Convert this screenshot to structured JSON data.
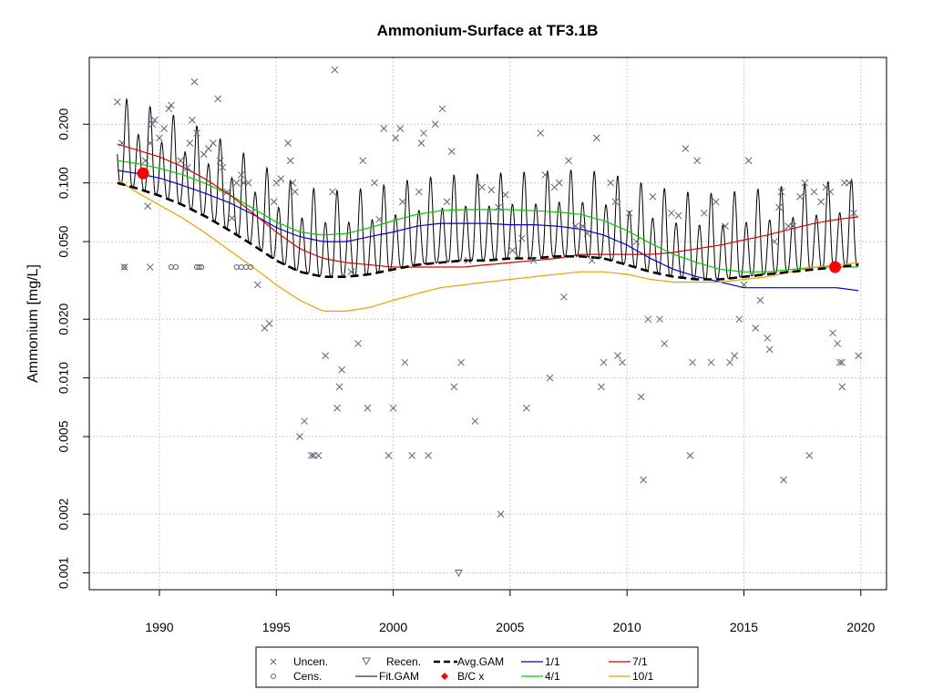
{
  "chart_data": {
    "type": "line",
    "title": "Ammonium-Surface at TF3.1B",
    "xlabel": "",
    "ylabel": "Ammonium [mg/L]",
    "xlim": [
      1987.0,
      2021.1
    ],
    "ylim": [
      0.00082,
      0.44
    ],
    "y_scale": "log",
    "grid": true,
    "x_ticks": [
      1990,
      1995,
      2000,
      2005,
      2010,
      2015,
      2020
    ],
    "y_ticks": [
      0.001,
      0.002,
      0.005,
      0.01,
      0.02,
      0.05,
      0.1,
      0.2
    ],
    "y_tick_labels": [
      "0.001",
      "0.002",
      "0.005",
      "0.010",
      "0.020",
      "0.050",
      "0.100",
      "0.200"
    ],
    "legend_position": "bottom",
    "colors": {
      "uncen": "#5a6577",
      "cens": "#5a6577",
      "fit": "#000000",
      "avg": "#000000",
      "bc": "#ff0000",
      "jan": "#0000cc",
      "apr": "#00cc00",
      "jul": "#dd0000",
      "oct": "#e8a000"
    },
    "legend": [
      {
        "label": "Uncen.",
        "kind": "uncen"
      },
      {
        "label": "Cens.",
        "kind": "cens"
      },
      {
        "label": "Recen.",
        "kind": "recen"
      },
      {
        "label": "Fit.GAM",
        "kind": "fit"
      },
      {
        "label": "Avg.GAM",
        "kind": "avg"
      },
      {
        "label": "B/C x",
        "kind": "bc"
      },
      {
        "label": "1/1",
        "kind": "jan"
      },
      {
        "label": "4/1",
        "kind": "apr"
      },
      {
        "label": "7/1",
        "kind": "jul"
      },
      {
        "label": "10/1",
        "kind": "oct"
      }
    ],
    "series": [
      {
        "name": "Avg.GAM",
        "x": [
          1988.2,
          1989,
          1990,
          1991,
          1992,
          1993,
          1994,
          1995,
          1996,
          1997,
          1998,
          1999,
          2000,
          2001,
          2002,
          2003,
          2004,
          2005,
          2006,
          2007,
          2008,
          2009,
          2010,
          2011,
          2012,
          2013,
          2014,
          2015,
          2016,
          2017,
          2018,
          2019,
          2019.9
        ],
        "y": [
          0.1,
          0.094,
          0.086,
          0.077,
          0.067,
          0.057,
          0.048,
          0.04,
          0.035,
          0.033,
          0.033,
          0.034,
          0.036,
          0.038,
          0.039,
          0.04,
          0.04,
          0.041,
          0.041,
          0.042,
          0.042,
          0.041,
          0.038,
          0.035,
          0.033,
          0.032,
          0.032,
          0.033,
          0.034,
          0.035,
          0.036,
          0.037,
          0.038
        ]
      },
      {
        "name": "1/1",
        "x": [
          1988.2,
          1989,
          1990,
          1991,
          1992,
          1993,
          1994,
          1995,
          1996,
          1997,
          1998,
          1999,
          2000,
          2001,
          2002,
          2003,
          2004,
          2005,
          2006,
          2007,
          2008,
          2009,
          2010,
          2011,
          2012,
          2013,
          2014,
          2015,
          2016,
          2017,
          2018,
          2019,
          2019.9
        ],
        "y": [
          0.116,
          0.112,
          0.106,
          0.097,
          0.088,
          0.079,
          0.069,
          0.059,
          0.053,
          0.05,
          0.05,
          0.053,
          0.056,
          0.06,
          0.062,
          0.062,
          0.062,
          0.061,
          0.061,
          0.06,
          0.058,
          0.054,
          0.048,
          0.041,
          0.036,
          0.033,
          0.031,
          0.029,
          0.029,
          0.029,
          0.029,
          0.029,
          0.028
        ]
      },
      {
        "name": "4/1",
        "x": [
          1988.2,
          1989,
          1990,
          1991,
          1992,
          1993,
          1994,
          1995,
          1996,
          1997,
          1998,
          1999,
          2000,
          2001,
          2002,
          2003,
          2004,
          2005,
          2006,
          2007,
          2008,
          2009,
          2010,
          2011,
          2012,
          2013,
          2014,
          2015,
          2016,
          2017,
          2018,
          2019,
          2019.9
        ],
        "y": [
          0.13,
          0.126,
          0.119,
          0.11,
          0.099,
          0.087,
          0.074,
          0.063,
          0.056,
          0.054,
          0.055,
          0.059,
          0.064,
          0.069,
          0.072,
          0.073,
          0.073,
          0.073,
          0.072,
          0.071,
          0.069,
          0.064,
          0.057,
          0.049,
          0.043,
          0.039,
          0.036,
          0.035,
          0.035,
          0.036,
          0.037,
          0.037,
          0.037
        ]
      },
      {
        "name": "7/1",
        "x": [
          1988.2,
          1989,
          1990,
          1991,
          1992,
          1993,
          1994,
          1995,
          1996,
          1997,
          1998,
          1999,
          2000,
          2001,
          2002,
          2003,
          2004,
          2005,
          2006,
          2007,
          2008,
          2009,
          2010,
          2011,
          2012,
          2013,
          2014,
          2015,
          2016,
          2017,
          2018,
          2019,
          2019.9
        ],
        "y": [
          0.158,
          0.148,
          0.136,
          0.121,
          0.104,
          0.087,
          0.07,
          0.056,
          0.046,
          0.041,
          0.039,
          0.038,
          0.037,
          0.037,
          0.037,
          0.037,
          0.038,
          0.039,
          0.04,
          0.041,
          0.043,
          0.043,
          0.043,
          0.043,
          0.044,
          0.046,
          0.048,
          0.051,
          0.054,
          0.058,
          0.062,
          0.065,
          0.067
        ]
      },
      {
        "name": "10/1",
        "x": [
          1988.2,
          1989,
          1990,
          1991,
          1992,
          1993,
          1994,
          1995,
          1996,
          1997,
          1998,
          1999,
          2000,
          2001,
          2002,
          2003,
          2004,
          2005,
          2006,
          2007,
          2008,
          2009,
          2010,
          2011,
          2012,
          2013,
          2014,
          2015,
          2016,
          2017,
          2018,
          2019,
          2019.9
        ],
        "y": [
          0.104,
          0.09,
          0.077,
          0.066,
          0.055,
          0.045,
          0.037,
          0.03,
          0.025,
          0.022,
          0.022,
          0.023,
          0.025,
          0.027,
          0.029,
          0.03,
          0.031,
          0.032,
          0.033,
          0.034,
          0.035,
          0.035,
          0.034,
          0.032,
          0.031,
          0.031,
          0.031,
          0.032,
          0.033,
          0.035,
          0.037,
          0.038,
          0.039
        ]
      }
    ],
    "fit_gam_seasonal": {
      "start_year": 1988.2,
      "end_year": 2019.9,
      "peak_month_fraction": 0.1,
      "trough_month_fraction": 0.72,
      "peak_multiplier": 1.9,
      "trough_multiplier": 0.36
    },
    "bc_points": [
      {
        "x": 1989.3,
        "y": 0.112
      },
      {
        "x": 2018.9,
        "y": 0.037
      }
    ],
    "recen_points": [
      {
        "x": 2002.8,
        "y": 0.001
      }
    ],
    "cens_points": [
      {
        "x": 1988.5,
        "y": 0.037
      },
      {
        "x": 1990.5,
        "y": 0.037
      },
      {
        "x": 1990.7,
        "y": 0.037
      },
      {
        "x": 1991.6,
        "y": 0.037
      },
      {
        "x": 1991.7,
        "y": 0.037
      },
      {
        "x": 1991.8,
        "y": 0.037
      },
      {
        "x": 1993.3,
        "y": 0.037
      },
      {
        "x": 1993.5,
        "y": 0.037
      },
      {
        "x": 1993.7,
        "y": 0.037
      },
      {
        "x": 1993.9,
        "y": 0.037
      }
    ],
    "uncen_points": [
      {
        "x": 1988.2,
        "y": 0.26
      },
      {
        "x": 1988.4,
        "y": 0.16
      },
      {
        "x": 1988.5,
        "y": 0.037
      },
      {
        "x": 1989.4,
        "y": 0.13
      },
      {
        "x": 1989.5,
        "y": 0.076
      },
      {
        "x": 1989.6,
        "y": 0.16
      },
      {
        "x": 1989.7,
        "y": 0.2
      },
      {
        "x": 1989.8,
        "y": 0.21
      },
      {
        "x": 1989.6,
        "y": 0.037
      },
      {
        "x": 1990.0,
        "y": 0.17
      },
      {
        "x": 1990.2,
        "y": 0.19
      },
      {
        "x": 1990.4,
        "y": 0.24
      },
      {
        "x": 1990.5,
        "y": 0.25
      },
      {
        "x": 1990.9,
        "y": 0.13
      },
      {
        "x": 1991.2,
        "y": 0.12
      },
      {
        "x": 1991.3,
        "y": 0.16
      },
      {
        "x": 1991.4,
        "y": 0.21
      },
      {
        "x": 1991.5,
        "y": 0.33
      },
      {
        "x": 1991.6,
        "y": 0.18
      },
      {
        "x": 1991.9,
        "y": 0.14
      },
      {
        "x": 1992.1,
        "y": 0.15
      },
      {
        "x": 1992.3,
        "y": 0.16
      },
      {
        "x": 1992.5,
        "y": 0.27
      },
      {
        "x": 1992.6,
        "y": 0.13
      },
      {
        "x": 1992.7,
        "y": 0.12
      },
      {
        "x": 1992.9,
        "y": 0.09
      },
      {
        "x": 1993.1,
        "y": 0.066
      },
      {
        "x": 1993.3,
        "y": 0.1
      },
      {
        "x": 1993.5,
        "y": 0.11
      },
      {
        "x": 1993.6,
        "y": 0.1
      },
      {
        "x": 1993.8,
        "y": 0.1
      },
      {
        "x": 1994.2,
        "y": 0.03
      },
      {
        "x": 1994.5,
        "y": 0.018
      },
      {
        "x": 1994.7,
        "y": 0.019
      },
      {
        "x": 1994.9,
        "y": 0.08
      },
      {
        "x": 1995.0,
        "y": 0.1
      },
      {
        "x": 1995.2,
        "y": 0.105
      },
      {
        "x": 1995.5,
        "y": 0.16
      },
      {
        "x": 1995.6,
        "y": 0.13
      },
      {
        "x": 1995.7,
        "y": 0.1
      },
      {
        "x": 1995.8,
        "y": 0.09
      },
      {
        "x": 1996.0,
        "y": 0.005
      },
      {
        "x": 1996.2,
        "y": 0.006
      },
      {
        "x": 1996.5,
        "y": 0.004
      },
      {
        "x": 1996.6,
        "y": 0.004
      },
      {
        "x": 1996.8,
        "y": 0.004
      },
      {
        "x": 1997.1,
        "y": 0.013
      },
      {
        "x": 1997.4,
        "y": 0.09
      },
      {
        "x": 1997.5,
        "y": 0.38
      },
      {
        "x": 1997.7,
        "y": 0.009
      },
      {
        "x": 1997.8,
        "y": 0.011
      },
      {
        "x": 1997.6,
        "y": 0.007
      },
      {
        "x": 1998.2,
        "y": 0.035
      },
      {
        "x": 1998.5,
        "y": 0.015
      },
      {
        "x": 1998.7,
        "y": 0.13
      },
      {
        "x": 1998.9,
        "y": 0.007
      },
      {
        "x": 1999.2,
        "y": 0.1
      },
      {
        "x": 1999.4,
        "y": 0.065
      },
      {
        "x": 1999.6,
        "y": 0.19
      },
      {
        "x": 1999.8,
        "y": 0.004
      },
      {
        "x": 2000.0,
        "y": 0.007
      },
      {
        "x": 2000.1,
        "y": 0.17
      },
      {
        "x": 2000.3,
        "y": 0.19
      },
      {
        "x": 2000.4,
        "y": 0.08
      },
      {
        "x": 2000.5,
        "y": 0.012
      },
      {
        "x": 2000.8,
        "y": 0.004
      },
      {
        "x": 2001.1,
        "y": 0.09
      },
      {
        "x": 2001.2,
        "y": 0.16
      },
      {
        "x": 2001.3,
        "y": 0.18
      },
      {
        "x": 2001.5,
        "y": 0.004
      },
      {
        "x": 2001.8,
        "y": 0.2
      },
      {
        "x": 2002.1,
        "y": 0.24
      },
      {
        "x": 2002.3,
        "y": 0.08
      },
      {
        "x": 2002.5,
        "y": 0.145
      },
      {
        "x": 2002.6,
        "y": 0.009
      },
      {
        "x": 2002.9,
        "y": 0.012
      },
      {
        "x": 2003.2,
        "y": 0.04
      },
      {
        "x": 2003.5,
        "y": 0.006
      },
      {
        "x": 2003.8,
        "y": 0.095
      },
      {
        "x": 2004.2,
        "y": 0.092
      },
      {
        "x": 2004.5,
        "y": 0.075
      },
      {
        "x": 2004.6,
        "y": 0.002
      },
      {
        "x": 2004.8,
        "y": 0.087
      },
      {
        "x": 2005.1,
        "y": 0.045
      },
      {
        "x": 2005.5,
        "y": 0.052
      },
      {
        "x": 2005.7,
        "y": 0.007
      },
      {
        "x": 2006.0,
        "y": 0.04
      },
      {
        "x": 2006.3,
        "y": 0.18
      },
      {
        "x": 2006.5,
        "y": 0.11
      },
      {
        "x": 2006.7,
        "y": 0.01
      },
      {
        "x": 2006.9,
        "y": 0.095
      },
      {
        "x": 2007.1,
        "y": 0.1
      },
      {
        "x": 2007.3,
        "y": 0.026
      },
      {
        "x": 2007.5,
        "y": 0.13
      },
      {
        "x": 2007.8,
        "y": 0.06
      },
      {
        "x": 2008.1,
        "y": 0.06
      },
      {
        "x": 2008.3,
        "y": 0.055
      },
      {
        "x": 2008.5,
        "y": 0.04
      },
      {
        "x": 2008.7,
        "y": 0.17
      },
      {
        "x": 2008.9,
        "y": 0.009
      },
      {
        "x": 2009.0,
        "y": 0.012
      },
      {
        "x": 2009.3,
        "y": 0.1
      },
      {
        "x": 2009.5,
        "y": 0.08
      },
      {
        "x": 2009.6,
        "y": 0.013
      },
      {
        "x": 2009.8,
        "y": 0.012
      },
      {
        "x": 2010.1,
        "y": 0.07
      },
      {
        "x": 2010.4,
        "y": 0.05
      },
      {
        "x": 2010.6,
        "y": 0.008
      },
      {
        "x": 2010.7,
        "y": 0.003
      },
      {
        "x": 2010.9,
        "y": 0.02
      },
      {
        "x": 2011.1,
        "y": 0.085
      },
      {
        "x": 2011.4,
        "y": 0.02
      },
      {
        "x": 2011.6,
        "y": 0.015
      },
      {
        "x": 2011.9,
        "y": 0.07
      },
      {
        "x": 2012.2,
        "y": 0.068
      },
      {
        "x": 2012.5,
        "y": 0.15
      },
      {
        "x": 2012.7,
        "y": 0.004
      },
      {
        "x": 2012.8,
        "y": 0.012
      },
      {
        "x": 2013.0,
        "y": 0.13
      },
      {
        "x": 2013.3,
        "y": 0.07
      },
      {
        "x": 2013.6,
        "y": 0.012
      },
      {
        "x": 2013.8,
        "y": 0.08
      },
      {
        "x": 2014.2,
        "y": 0.06
      },
      {
        "x": 2014.4,
        "y": 0.012
      },
      {
        "x": 2014.6,
        "y": 0.013
      },
      {
        "x": 2014.8,
        "y": 0.02
      },
      {
        "x": 2015.0,
        "y": 0.03
      },
      {
        "x": 2015.2,
        "y": 0.13
      },
      {
        "x": 2015.5,
        "y": 0.018
      },
      {
        "x": 2015.7,
        "y": 0.025
      },
      {
        "x": 2016.0,
        "y": 0.016
      },
      {
        "x": 2016.1,
        "y": 0.014
      },
      {
        "x": 2016.3,
        "y": 0.05
      },
      {
        "x": 2016.5,
        "y": 0.075
      },
      {
        "x": 2016.6,
        "y": 0.09
      },
      {
        "x": 2016.7,
        "y": 0.003
      },
      {
        "x": 2016.9,
        "y": 0.06
      },
      {
        "x": 2017.1,
        "y": 0.06
      },
      {
        "x": 2017.4,
        "y": 0.085
      },
      {
        "x": 2017.6,
        "y": 0.1
      },
      {
        "x": 2017.8,
        "y": 0.004
      },
      {
        "x": 2018.0,
        "y": 0.09
      },
      {
        "x": 2018.3,
        "y": 0.08
      },
      {
        "x": 2018.5,
        "y": 0.095
      },
      {
        "x": 2018.7,
        "y": 0.09
      },
      {
        "x": 2018.8,
        "y": 0.017
      },
      {
        "x": 2019.0,
        "y": 0.015
      },
      {
        "x": 2019.1,
        "y": 0.012
      },
      {
        "x": 2019.2,
        "y": 0.012
      },
      {
        "x": 2019.3,
        "y": 0.1
      },
      {
        "x": 2019.5,
        "y": 0.1
      },
      {
        "x": 2019.7,
        "y": 0.07
      },
      {
        "x": 2019.9,
        "y": 0.013
      },
      {
        "x": 2019.2,
        "y": 0.009
      }
    ]
  }
}
